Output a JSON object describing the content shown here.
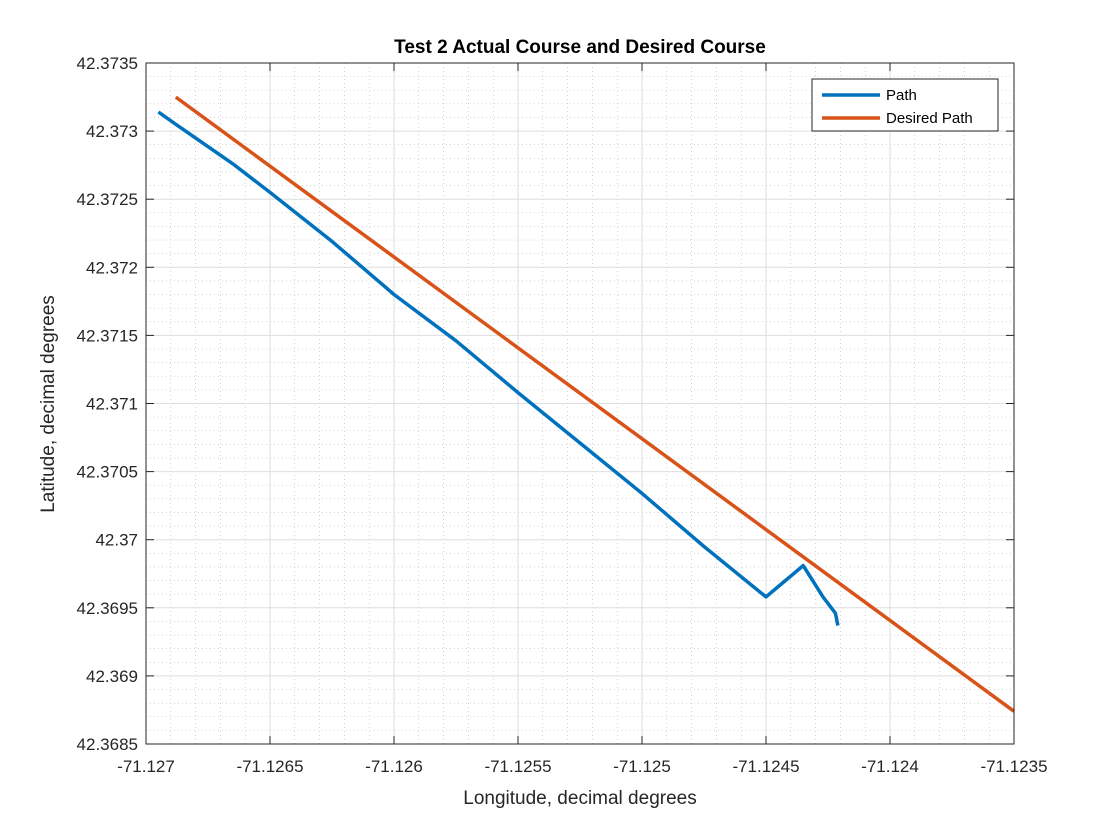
{
  "chart_data": {
    "type": "line",
    "title": "Test 2 Actual Course and Desired Course",
    "xlabel": "Longitude, decimal degrees",
    "ylabel": "Latitude, decimal degrees",
    "xlim": [
      -71.127,
      -71.1235
    ],
    "ylim": [
      42.3685,
      42.3735
    ],
    "xticks": [
      -71.127,
      -71.1265,
      -71.126,
      -71.1255,
      -71.125,
      -71.1245,
      -71.124,
      -71.1235
    ],
    "xtick_labels": [
      "-71.127",
      "-71.1265",
      "-71.126",
      "-71.1255",
      "-71.125",
      "-71.1245",
      "-71.124",
      "-71.1235"
    ],
    "yticks": [
      42.3685,
      42.369,
      42.3695,
      42.37,
      42.3705,
      42.371,
      42.3715,
      42.372,
      42.3725,
      42.373,
      42.3735
    ],
    "ytick_labels": [
      "42.3685",
      "42.369",
      "42.3695",
      "42.37",
      "42.3705",
      "42.371",
      "42.3715",
      "42.372",
      "42.3725",
      "42.373",
      "42.3735"
    ],
    "grid": true,
    "minor_grid": true,
    "legend": "top-right",
    "series": [
      {
        "name": "Path",
        "color": "#0072BD",
        "x": [
          -71.12695,
          -71.12688,
          -71.12665,
          -71.1265,
          -71.12625,
          -71.126,
          -71.12575,
          -71.1255,
          -71.12525,
          -71.125,
          -71.12475,
          -71.1245,
          -71.12435,
          -71.12427,
          -71.12422,
          -71.12421
        ],
        "y": [
          42.37314,
          42.37305,
          42.37276,
          42.37255,
          42.37219,
          42.3718,
          42.37146,
          42.37108,
          42.37071,
          42.37034,
          42.36995,
          42.36958,
          42.36981,
          42.36958,
          42.36946,
          42.36937
        ]
      },
      {
        "name": "Desired Path",
        "color": "#D95319",
        "x": [
          -71.12688,
          -71.1235
        ],
        "y": [
          42.37325,
          42.36874
        ]
      }
    ]
  }
}
